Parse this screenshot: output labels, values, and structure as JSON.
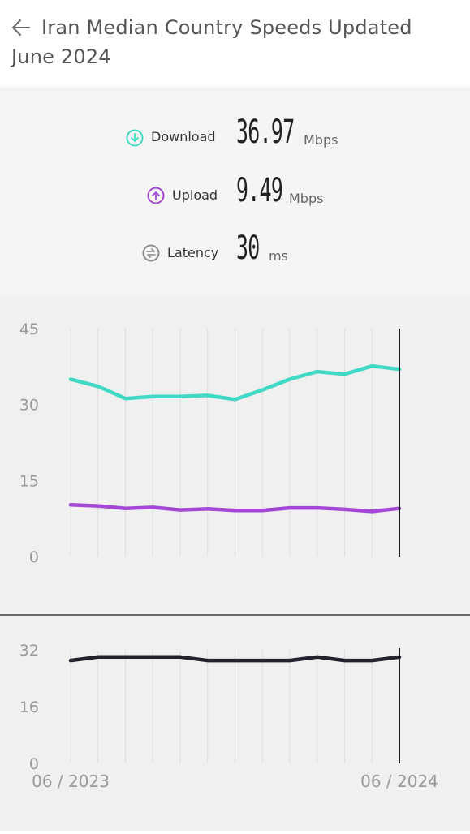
{
  "header": {
    "title_line1": "Iran Median Country Speeds Updated",
    "title_line2": "June 2024"
  },
  "stats": {
    "download": {
      "label": "Download",
      "value": "36.97",
      "unit": "Mbps",
      "color": "#3fd9c5",
      "icon": "arrow-down-circle-icon"
    },
    "upload": {
      "label": "Upload",
      "value": "9.49",
      "unit": "Mbps",
      "color": "#a447d6",
      "icon": "arrow-up-circle-icon"
    },
    "latency": {
      "label": "Latency",
      "value": "30",
      "unit": "ms",
      "color": "#8a8a8a",
      "icon": "latency-arrows-icon"
    }
  },
  "chart_data": [
    {
      "type": "line",
      "x": [
        "06/2023",
        "07/2023",
        "08/2023",
        "09/2023",
        "10/2023",
        "11/2023",
        "12/2023",
        "01/2024",
        "02/2024",
        "03/2024",
        "04/2024",
        "05/2024",
        "06/2024"
      ],
      "series": [
        {
          "values": [
            35.0,
            33.6,
            31.2,
            31.6,
            31.6,
            31.8,
            31.0,
            32.9,
            35.0,
            36.5,
            36.0,
            37.6,
            36.97
          ],
          "color": "#3fd9c5"
        },
        {
          "values": [
            10.2,
            10.0,
            9.5,
            9.7,
            9.2,
            9.4,
            9.1,
            9.1,
            9.6,
            9.6,
            9.3,
            8.9,
            9.49
          ],
          "color": "#a447d6"
        }
      ],
      "yticks": [
        "0",
        "15",
        "30",
        "45"
      ],
      "ylim": [
        0,
        45
      ],
      "grid": true
    },
    {
      "type": "line",
      "x": [
        "06/2023",
        "07/2023",
        "08/2023",
        "09/2023",
        "10/2023",
        "11/2023",
        "12/2023",
        "01/2024",
        "02/2024",
        "03/2024",
        "04/2024",
        "05/2024",
        "06/2024"
      ],
      "series": [
        {
          "values": [
            29,
            30,
            30,
            30,
            30,
            29,
            29,
            29,
            29,
            30,
            29,
            29,
            30
          ],
          "color": "#22222e"
        }
      ],
      "yticks": [
        "0",
        "16",
        "32"
      ],
      "ylim": [
        0,
        32
      ],
      "xlabels": [
        "06 / 2023",
        "06 / 2024"
      ],
      "grid": true
    }
  ]
}
